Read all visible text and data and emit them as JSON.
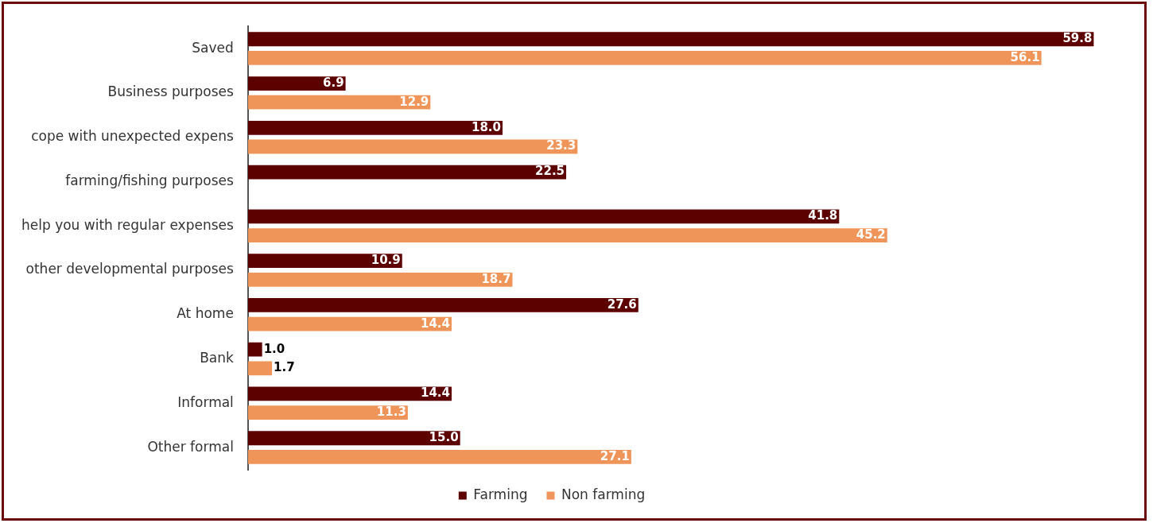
{
  "chart_data": {
    "type": "bar",
    "orientation": "horizontal",
    "categories": [
      "Saved",
      "Business purposes",
      "cope with unexpected expens",
      "farming/fishing purposes",
      "help you with regular expenses",
      "other developmental purposes",
      "At home",
      "Bank",
      "Informal",
      "Other formal"
    ],
    "series": [
      {
        "name": "Farming",
        "color": "#5c0000",
        "values": [
          59.8,
          6.9,
          18.0,
          22.5,
          41.8,
          10.9,
          27.6,
          1.0,
          14.4,
          15.0
        ],
        "value_labels": [
          "59.8",
          "6.9",
          "18.0",
          "22.5",
          "41.8",
          "10.9",
          "27.6",
          "1.0",
          "14.4",
          "15.0"
        ]
      },
      {
        "name": "Non farming",
        "color": "#f0955a",
        "values": [
          56.1,
          12.9,
          23.3,
          null,
          45.2,
          18.7,
          14.4,
          1.7,
          11.3,
          27.1
        ],
        "value_labels": [
          "56.1",
          "12.9",
          "23.3",
          null,
          "45.2",
          "18.7",
          "14.4",
          "1.7",
          "11.3",
          "27.1"
        ]
      }
    ],
    "legend": "bottom"
  }
}
